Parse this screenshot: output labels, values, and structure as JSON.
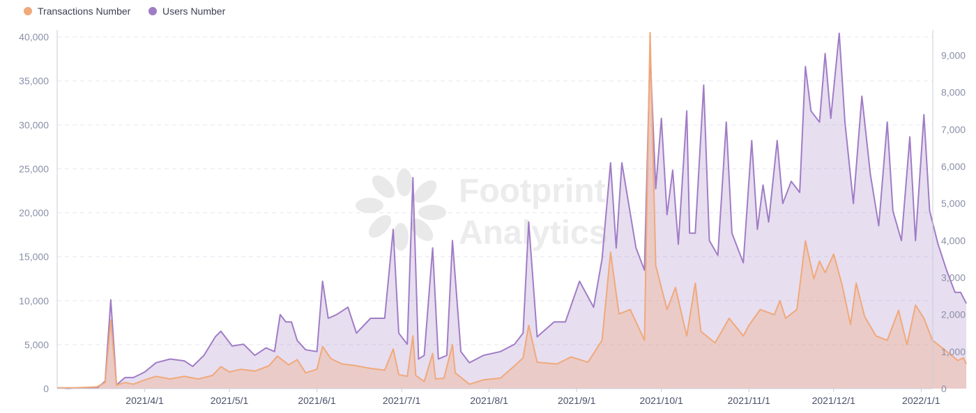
{
  "chart_data": {
    "type": "area",
    "title": "",
    "xlabel": "",
    "ylabel": "",
    "legend_position": "top-left",
    "grid": true,
    "x_ticks": [
      "2021/4/1",
      "2021/5/1",
      "2021/6/1",
      "2021/7/1",
      "2021/8/1",
      "2021/9/1",
      "2021/10/1",
      "2021/11/1",
      "2021/12/1",
      "2022/1/1"
    ],
    "y_left": {
      "lim": [
        0,
        40000
      ],
      "ticks": [
        "0",
        "5,000",
        "10,000",
        "15,000",
        "20,000",
        "25,000",
        "30,000",
        "35,000",
        "40,000"
      ]
    },
    "y_right": {
      "lim": [
        0,
        9500
      ],
      "ticks": [
        "0",
        "1,000",
        "2,000",
        "3,000",
        "4,000",
        "5,000",
        "6,000",
        "7,000",
        "8,000",
        "9,000"
      ]
    },
    "watermark": {
      "line1": "Footprint",
      "line2": "Analytics"
    },
    "x_start": "2021-03-01",
    "series": [
      {
        "name": "Transactions Number",
        "axis": "left",
        "color": "#f0a97a",
        "points": [
          [
            "2021-03-01",
            100
          ],
          [
            "2021-03-08",
            100
          ],
          [
            "2021-03-15",
            200
          ],
          [
            "2021-03-18",
            700
          ],
          [
            "2021-03-20",
            7800
          ],
          [
            "2021-03-22",
            400
          ],
          [
            "2021-03-25",
            700
          ],
          [
            "2021-03-28",
            500
          ],
          [
            "2021-04-01",
            1000
          ],
          [
            "2021-04-05",
            1400
          ],
          [
            "2021-04-10",
            1100
          ],
          [
            "2021-04-15",
            1400
          ],
          [
            "2021-04-20",
            1100
          ],
          [
            "2021-04-25",
            1500
          ],
          [
            "2021-04-28",
            2500
          ],
          [
            "2021-05-01",
            1900
          ],
          [
            "2021-05-05",
            2200
          ],
          [
            "2021-05-10",
            2000
          ],
          [
            "2021-05-15",
            2600
          ],
          [
            "2021-05-18",
            3700
          ],
          [
            "2021-05-22",
            2700
          ],
          [
            "2021-05-25",
            3300
          ],
          [
            "2021-05-28",
            1800
          ],
          [
            "2021-06-01",
            2200
          ],
          [
            "2021-06-03",
            4800
          ],
          [
            "2021-06-06",
            3400
          ],
          [
            "2021-06-10",
            2800
          ],
          [
            "2021-06-15",
            2600
          ],
          [
            "2021-06-20",
            2300
          ],
          [
            "2021-06-25",
            2100
          ],
          [
            "2021-06-28",
            4500
          ],
          [
            "2021-06-30",
            1600
          ],
          [
            "2021-07-03",
            1400
          ],
          [
            "2021-07-05",
            6000
          ],
          [
            "2021-07-06",
            1500
          ],
          [
            "2021-07-09",
            800
          ],
          [
            "2021-07-12",
            4000
          ],
          [
            "2021-07-13",
            1100
          ],
          [
            "2021-07-16",
            1200
          ],
          [
            "2021-07-19",
            5000
          ],
          [
            "2021-07-20",
            1800
          ],
          [
            "2021-07-25",
            500
          ],
          [
            "2021-07-30",
            1000
          ],
          [
            "2021-08-05",
            1200
          ],
          [
            "2021-08-10",
            2600
          ],
          [
            "2021-08-13",
            3500
          ],
          [
            "2021-08-15",
            7200
          ],
          [
            "2021-08-18",
            3000
          ],
          [
            "2021-08-25",
            2800
          ],
          [
            "2021-08-30",
            3600
          ],
          [
            "2021-09-05",
            3000
          ],
          [
            "2021-09-10",
            5500
          ],
          [
            "2021-09-13",
            15500
          ],
          [
            "2021-09-16",
            8500
          ],
          [
            "2021-09-20",
            9000
          ],
          [
            "2021-09-25",
            5500
          ],
          [
            "2021-09-27",
            40500
          ],
          [
            "2021-09-29",
            14000
          ],
          [
            "2021-10-03",
            9000
          ],
          [
            "2021-10-06",
            11500
          ],
          [
            "2021-10-10",
            6000
          ],
          [
            "2021-10-13",
            12000
          ],
          [
            "2021-10-15",
            6500
          ],
          [
            "2021-10-20",
            5200
          ],
          [
            "2021-10-25",
            8000
          ],
          [
            "2021-10-30",
            6000
          ],
          [
            "2021-11-01",
            7200
          ],
          [
            "2021-11-05",
            9000
          ],
          [
            "2021-11-10",
            8400
          ],
          [
            "2021-11-12",
            10000
          ],
          [
            "2021-11-14",
            8000
          ],
          [
            "2021-11-18",
            9000
          ],
          [
            "2021-11-21",
            16800
          ],
          [
            "2021-11-24",
            12500
          ],
          [
            "2021-11-26",
            14500
          ],
          [
            "2021-11-28",
            13200
          ],
          [
            "2021-12-01",
            15300
          ],
          [
            "2021-12-04",
            11800
          ],
          [
            "2021-12-07",
            7300
          ],
          [
            "2021-12-09",
            12000
          ],
          [
            "2021-12-12",
            8200
          ],
          [
            "2021-12-16",
            6000
          ],
          [
            "2021-12-20",
            5500
          ],
          [
            "2021-12-24",
            8900
          ],
          [
            "2021-12-27",
            5000
          ],
          [
            "2021-12-30",
            9500
          ],
          [
            "2022-01-02",
            8000
          ],
          [
            "2022-01-05",
            5500
          ],
          [
            "2022-01-09",
            4500
          ],
          [
            "2022-01-14",
            3200
          ],
          [
            "2022-01-16",
            3500
          ],
          [
            "2022-01-17",
            2800
          ]
        ]
      },
      {
        "name": "Users Number",
        "axis": "right",
        "color": "#a07cc5",
        "points": [
          [
            "2021-03-01",
            20
          ],
          [
            "2021-03-05",
            0
          ],
          [
            "2021-03-10",
            30
          ],
          [
            "2021-03-15",
            10
          ],
          [
            "2021-03-18",
            200
          ],
          [
            "2021-03-20",
            2400
          ],
          [
            "2021-03-22",
            100
          ],
          [
            "2021-03-25",
            300
          ],
          [
            "2021-03-28",
            300
          ],
          [
            "2021-04-01",
            450
          ],
          [
            "2021-04-05",
            700
          ],
          [
            "2021-04-10",
            800
          ],
          [
            "2021-04-15",
            750
          ],
          [
            "2021-04-18",
            600
          ],
          [
            "2021-04-22",
            900
          ],
          [
            "2021-04-26",
            1400
          ],
          [
            "2021-04-28",
            1550
          ],
          [
            "2021-05-02",
            1150
          ],
          [
            "2021-05-06",
            1200
          ],
          [
            "2021-05-10",
            900
          ],
          [
            "2021-05-14",
            1100
          ],
          [
            "2021-05-17",
            1000
          ],
          [
            "2021-05-19",
            2000
          ],
          [
            "2021-05-21",
            1800
          ],
          [
            "2021-05-23",
            1800
          ],
          [
            "2021-05-25",
            1300
          ],
          [
            "2021-05-28",
            1050
          ],
          [
            "2021-06-01",
            1000
          ],
          [
            "2021-06-03",
            2900
          ],
          [
            "2021-06-05",
            1900
          ],
          [
            "2021-06-08",
            2000
          ],
          [
            "2021-06-12",
            2200
          ],
          [
            "2021-06-15",
            1500
          ],
          [
            "2021-06-20",
            1900
          ],
          [
            "2021-06-25",
            1900
          ],
          [
            "2021-06-28",
            4300
          ],
          [
            "2021-06-30",
            1500
          ],
          [
            "2021-07-03",
            1200
          ],
          [
            "2021-07-05",
            5700
          ],
          [
            "2021-07-07",
            800
          ],
          [
            "2021-07-09",
            900
          ],
          [
            "2021-07-12",
            3800
          ],
          [
            "2021-07-14",
            800
          ],
          [
            "2021-07-17",
            900
          ],
          [
            "2021-07-19",
            4000
          ],
          [
            "2021-07-22",
            1000
          ],
          [
            "2021-07-25",
            700
          ],
          [
            "2021-07-30",
            900
          ],
          [
            "2021-08-05",
            1000
          ],
          [
            "2021-08-10",
            1200
          ],
          [
            "2021-08-13",
            1500
          ],
          [
            "2021-08-15",
            4500
          ],
          [
            "2021-08-18",
            1400
          ],
          [
            "2021-08-24",
            1800
          ],
          [
            "2021-08-28",
            1800
          ],
          [
            "2021-09-02",
            2900
          ],
          [
            "2021-09-07",
            2200
          ],
          [
            "2021-09-10",
            3500
          ],
          [
            "2021-09-13",
            6100
          ],
          [
            "2021-09-15",
            3800
          ],
          [
            "2021-09-17",
            6100
          ],
          [
            "2021-09-22",
            3800
          ],
          [
            "2021-09-25",
            3200
          ],
          [
            "2021-09-27",
            9100
          ],
          [
            "2021-09-29",
            5400
          ],
          [
            "2021-10-01",
            7300
          ],
          [
            "2021-10-03",
            4700
          ],
          [
            "2021-10-05",
            5900
          ],
          [
            "2021-10-07",
            3900
          ],
          [
            "2021-10-10",
            7500
          ],
          [
            "2021-10-11",
            4200
          ],
          [
            "2021-10-13",
            4200
          ],
          [
            "2021-10-16",
            8200
          ],
          [
            "2021-10-18",
            4000
          ],
          [
            "2021-10-21",
            3600
          ],
          [
            "2021-10-24",
            7200
          ],
          [
            "2021-10-26",
            4200
          ],
          [
            "2021-10-30",
            3400
          ],
          [
            "2021-11-02",
            6700
          ],
          [
            "2021-11-04",
            4300
          ],
          [
            "2021-11-06",
            5500
          ],
          [
            "2021-11-08",
            4500
          ],
          [
            "2021-11-11",
            6700
          ],
          [
            "2021-11-13",
            5000
          ],
          [
            "2021-11-16",
            5600
          ],
          [
            "2021-11-19",
            5300
          ],
          [
            "2021-11-21",
            8700
          ],
          [
            "2021-11-23",
            7500
          ],
          [
            "2021-11-26",
            7200
          ],
          [
            "2021-11-28",
            9050
          ],
          [
            "2021-11-30",
            7300
          ],
          [
            "2021-12-03",
            9600
          ],
          [
            "2021-12-05",
            7200
          ],
          [
            "2021-12-08",
            5000
          ],
          [
            "2021-12-11",
            7900
          ],
          [
            "2021-12-14",
            5800
          ],
          [
            "2021-12-17",
            4400
          ],
          [
            "2021-12-20",
            7200
          ],
          [
            "2021-12-22",
            4800
          ],
          [
            "2021-12-25",
            4000
          ],
          [
            "2021-12-28",
            6800
          ],
          [
            "2021-12-30",
            4000
          ],
          [
            "2022-01-02",
            7400
          ],
          [
            "2022-01-04",
            4800
          ],
          [
            "2022-01-07",
            3900
          ],
          [
            "2022-01-10",
            3200
          ],
          [
            "2022-01-13",
            2600
          ],
          [
            "2022-01-15",
            2600
          ],
          [
            "2022-01-17",
            2300
          ]
        ]
      }
    ]
  }
}
